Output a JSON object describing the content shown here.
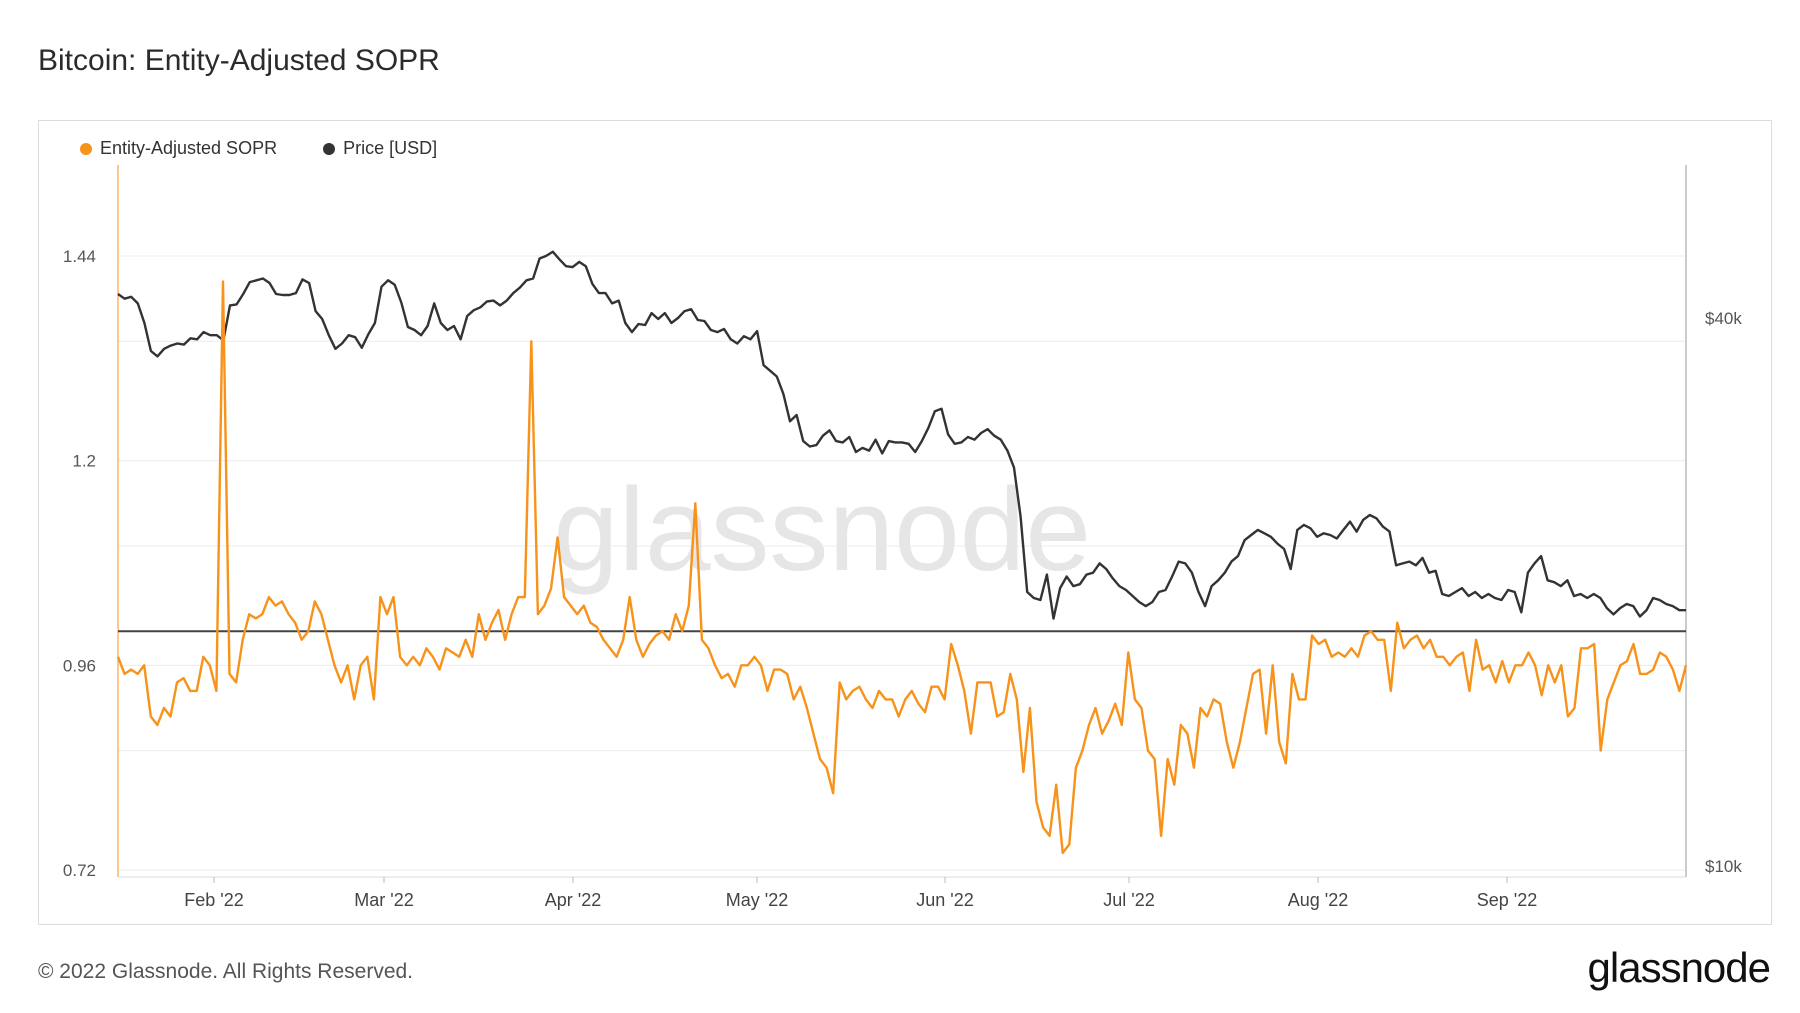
{
  "header": {
    "title": "Bitcoin: Entity-Adjusted SOPR"
  },
  "footer": {
    "copyright": "© 2022 Glassnode. All Rights Reserved.",
    "logo": "glassnode"
  },
  "watermark": "glassnode",
  "colors": {
    "sopr": "#f7931a",
    "price": "#333333",
    "grid": "#ececec",
    "axis": "#888888"
  },
  "chart_data": {
    "type": "line",
    "title": "Bitcoin: Entity-Adjusted SOPR",
    "legend_position": "top-left",
    "grid": true,
    "x_ticks": [
      "Feb '22",
      "Mar '22",
      "Apr '22",
      "May '22",
      "Jun '22",
      "Jul '22",
      "Aug '22",
      "Sep '22"
    ],
    "y_left": {
      "ticks": [
        "1.44",
        "1.2",
        "0.96",
        "0.72"
      ],
      "range": [
        0.72,
        1.44
      ],
      "reference_line": 1.0
    },
    "y_right": {
      "ticks": [
        "$40k",
        "$10k"
      ],
      "scale": "log"
    },
    "series": [
      {
        "name": "Entity-Adjusted SOPR",
        "axis": "left",
        "values": [
          0.97,
          0.95,
          0.955,
          0.95,
          0.96,
          0.9,
          0.89,
          0.91,
          0.9,
          0.94,
          0.945,
          0.93,
          0.93,
          0.97,
          0.96,
          0.93,
          1.41,
          0.95,
          0.94,
          0.99,
          1.02,
          1.015,
          1.02,
          1.04,
          1.03,
          1.035,
          1.02,
          1.01,
          0.99,
          1.0,
          1.035,
          1.02,
          0.99,
          0.96,
          0.94,
          0.96,
          0.92,
          0.96,
          0.97,
          0.92,
          1.04,
          1.02,
          1.04,
          0.97,
          0.96,
          0.97,
          0.96,
          0.98,
          0.97,
          0.955,
          0.98,
          0.975,
          0.97,
          0.99,
          0.97,
          1.02,
          0.99,
          1.01,
          1.025,
          0.99,
          1.02,
          1.04,
          1.04,
          1.34,
          1.02,
          1.03,
          1.05,
          1.11,
          1.04,
          1.03,
          1.02,
          1.03,
          1.01,
          1.005,
          0.99,
          0.98,
          0.97,
          0.99,
          1.04,
          0.99,
          0.97,
          0.985,
          0.995,
          1.0,
          0.99,
          1.02,
          1.0,
          1.03,
          1.15,
          0.99,
          0.98,
          0.96,
          0.945,
          0.95,
          0.935,
          0.96,
          0.96,
          0.97,
          0.96,
          0.93,
          0.955,
          0.955,
          0.95,
          0.92,
          0.935,
          0.91,
          0.88,
          0.85,
          0.84,
          0.81,
          0.94,
          0.92,
          0.93,
          0.935,
          0.92,
          0.91,
          0.93,
          0.92,
          0.92,
          0.9,
          0.92,
          0.93,
          0.915,
          0.905,
          0.935,
          0.935,
          0.92,
          0.985,
          0.96,
          0.93,
          0.88,
          0.94,
          0.94,
          0.94,
          0.9,
          0.905,
          0.95,
          0.92,
          0.835,
          0.91,
          0.8,
          0.77,
          0.76,
          0.82,
          0.74,
          0.75,
          0.84,
          0.86,
          0.89,
          0.91,
          0.88,
          0.895,
          0.915,
          0.89,
          0.975,
          0.92,
          0.91,
          0.86,
          0.85,
          0.76,
          0.85,
          0.82,
          0.89,
          0.88,
          0.84,
          0.91,
          0.9,
          0.92,
          0.915,
          0.87,
          0.84,
          0.87,
          0.91,
          0.95,
          0.955,
          0.88,
          0.96,
          0.87,
          0.845,
          0.95,
          0.92,
          0.92,
          0.995,
          0.985,
          0.99,
          0.97,
          0.975,
          0.97,
          0.98,
          0.97,
          0.995,
          1.0,
          0.99,
          0.99,
          0.93,
          1.01,
          0.98,
          0.99,
          0.995,
          0.98,
          0.99,
          0.97,
          0.97,
          0.96,
          0.97,
          0.975,
          0.93,
          0.99,
          0.955,
          0.96,
          0.94,
          0.965,
          0.94,
          0.96,
          0.96,
          0.975,
          0.96,
          0.925,
          0.96,
          0.94,
          0.96,
          0.9,
          0.91,
          0.98,
          0.98,
          0.985,
          0.86,
          0.92,
          0.94,
          0.96,
          0.965,
          0.985,
          0.95,
          0.95,
          0.955,
          0.975,
          0.97,
          0.955,
          0.93,
          0.96
        ]
      },
      {
        "name": "Price [USD]",
        "axis": "right",
        "values": [
          42500,
          42000,
          42200,
          41500,
          39500,
          36800,
          36300,
          37000,
          37300,
          37500,
          37400,
          38000,
          37900,
          38600,
          38300,
          38300,
          37800,
          41300,
          41400,
          42500,
          43800,
          44000,
          44200,
          43700,
          42500,
          42400,
          42400,
          42600,
          44100,
          43700,
          40700,
          39900,
          38300,
          37000,
          37500,
          38300,
          38100,
          37100,
          38400,
          39500,
          43300,
          44000,
          43500,
          41600,
          39100,
          38800,
          38300,
          39200,
          41500,
          39500,
          38800,
          39200,
          37900,
          40200,
          40800,
          41100,
          41700,
          41800,
          41300,
          41800,
          42600,
          43200,
          44000,
          44200,
          46500,
          46800,
          47300,
          46400,
          45600,
          45500,
          46100,
          45600,
          43600,
          42600,
          42600,
          41500,
          41800,
          39500,
          38600,
          39400,
          39300,
          40500,
          39900,
          40500,
          39500,
          40000,
          40700,
          40900,
          39800,
          39700,
          38800,
          38600,
          38900,
          37900,
          37500,
          38200,
          37900,
          38700,
          35500,
          35000,
          34500,
          33000,
          30800,
          31300,
          29300,
          28900,
          29000,
          29700,
          30100,
          29300,
          29200,
          29600,
          28500,
          28800,
          28600,
          29400,
          28400,
          29300,
          29200,
          29200,
          29100,
          28500,
          29300,
          30300,
          31600,
          31800,
          29800,
          29100,
          29200,
          29600,
          29400,
          29900,
          30200,
          29700,
          29400,
          28600,
          27400,
          24200,
          20000,
          19700,
          19600,
          20900,
          18700,
          20200,
          20800,
          20300,
          20400,
          20900,
          21000,
          21500,
          21200,
          20700,
          20300,
          20100,
          19800,
          19500,
          19300,
          19500,
          20000,
          20100,
          20800,
          21600,
          21500,
          21000,
          20000,
          19300,
          20300,
          20600,
          21000,
          21600,
          21900,
          22800,
          23100,
          23400,
          23200,
          23000,
          22600,
          22300,
          21200,
          23400,
          23700,
          23500,
          23000,
          23200,
          23100,
          22900,
          23400,
          23900,
          23300,
          24000,
          24300,
          24100,
          23600,
          23300,
          21400,
          21500,
          21600,
          21400,
          21800,
          21000,
          21100,
          19900,
          19800,
          20000,
          20200,
          19800,
          20000,
          19700,
          19900,
          19700,
          19600,
          20100,
          20000,
          19000,
          21000,
          21500,
          21900,
          20600,
          20500,
          20300,
          20600,
          19800,
          19900,
          19700,
          19900,
          19700,
          19200,
          18900,
          19200,
          19400,
          19300,
          18800,
          19100,
          19700,
          19600,
          19400,
          19300,
          19100,
          19100
        ]
      }
    ]
  }
}
